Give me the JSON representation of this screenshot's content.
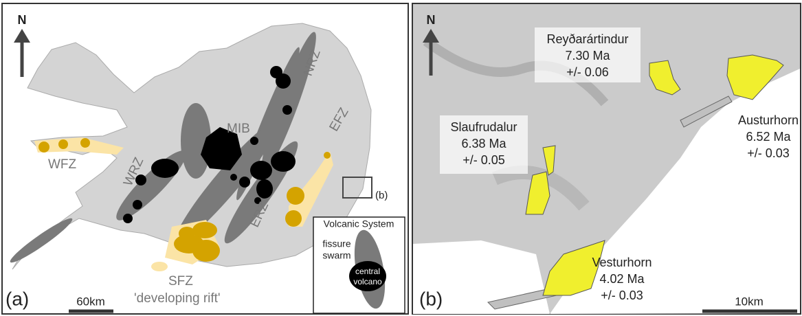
{
  "panel_a": {
    "label": "(a)",
    "north": "N",
    "zones": [
      "MIB",
      "NRZ",
      "EFZ",
      "WFZ",
      "WRZ",
      "ERZ",
      "SFZ"
    ],
    "sfz_note": "'developing rift'",
    "inset_label": "(b)",
    "scale": "60km",
    "legend": {
      "title": "Volcanic System",
      "fissure": [
        "fissure",
        "swarm"
      ],
      "volcano": [
        "central",
        "volcano"
      ]
    }
  },
  "panel_b": {
    "label": "(b)",
    "north": "N",
    "scale": "10km",
    "sites": [
      {
        "name": "Reyðarártindur",
        "age": "7.30 Ma",
        "error": "+/- 0.06"
      },
      {
        "name": "Slaufrudalur",
        "age": "6.38 Ma",
        "error": "+/- 0.05"
      },
      {
        "name": "Austurhorn",
        "age": "6.52 Ma",
        "error": "+/- 0.03"
      },
      {
        "name": "Vesturhorn",
        "age": "4.02 Ma",
        "error": "+/- 0.03"
      }
    ]
  }
}
